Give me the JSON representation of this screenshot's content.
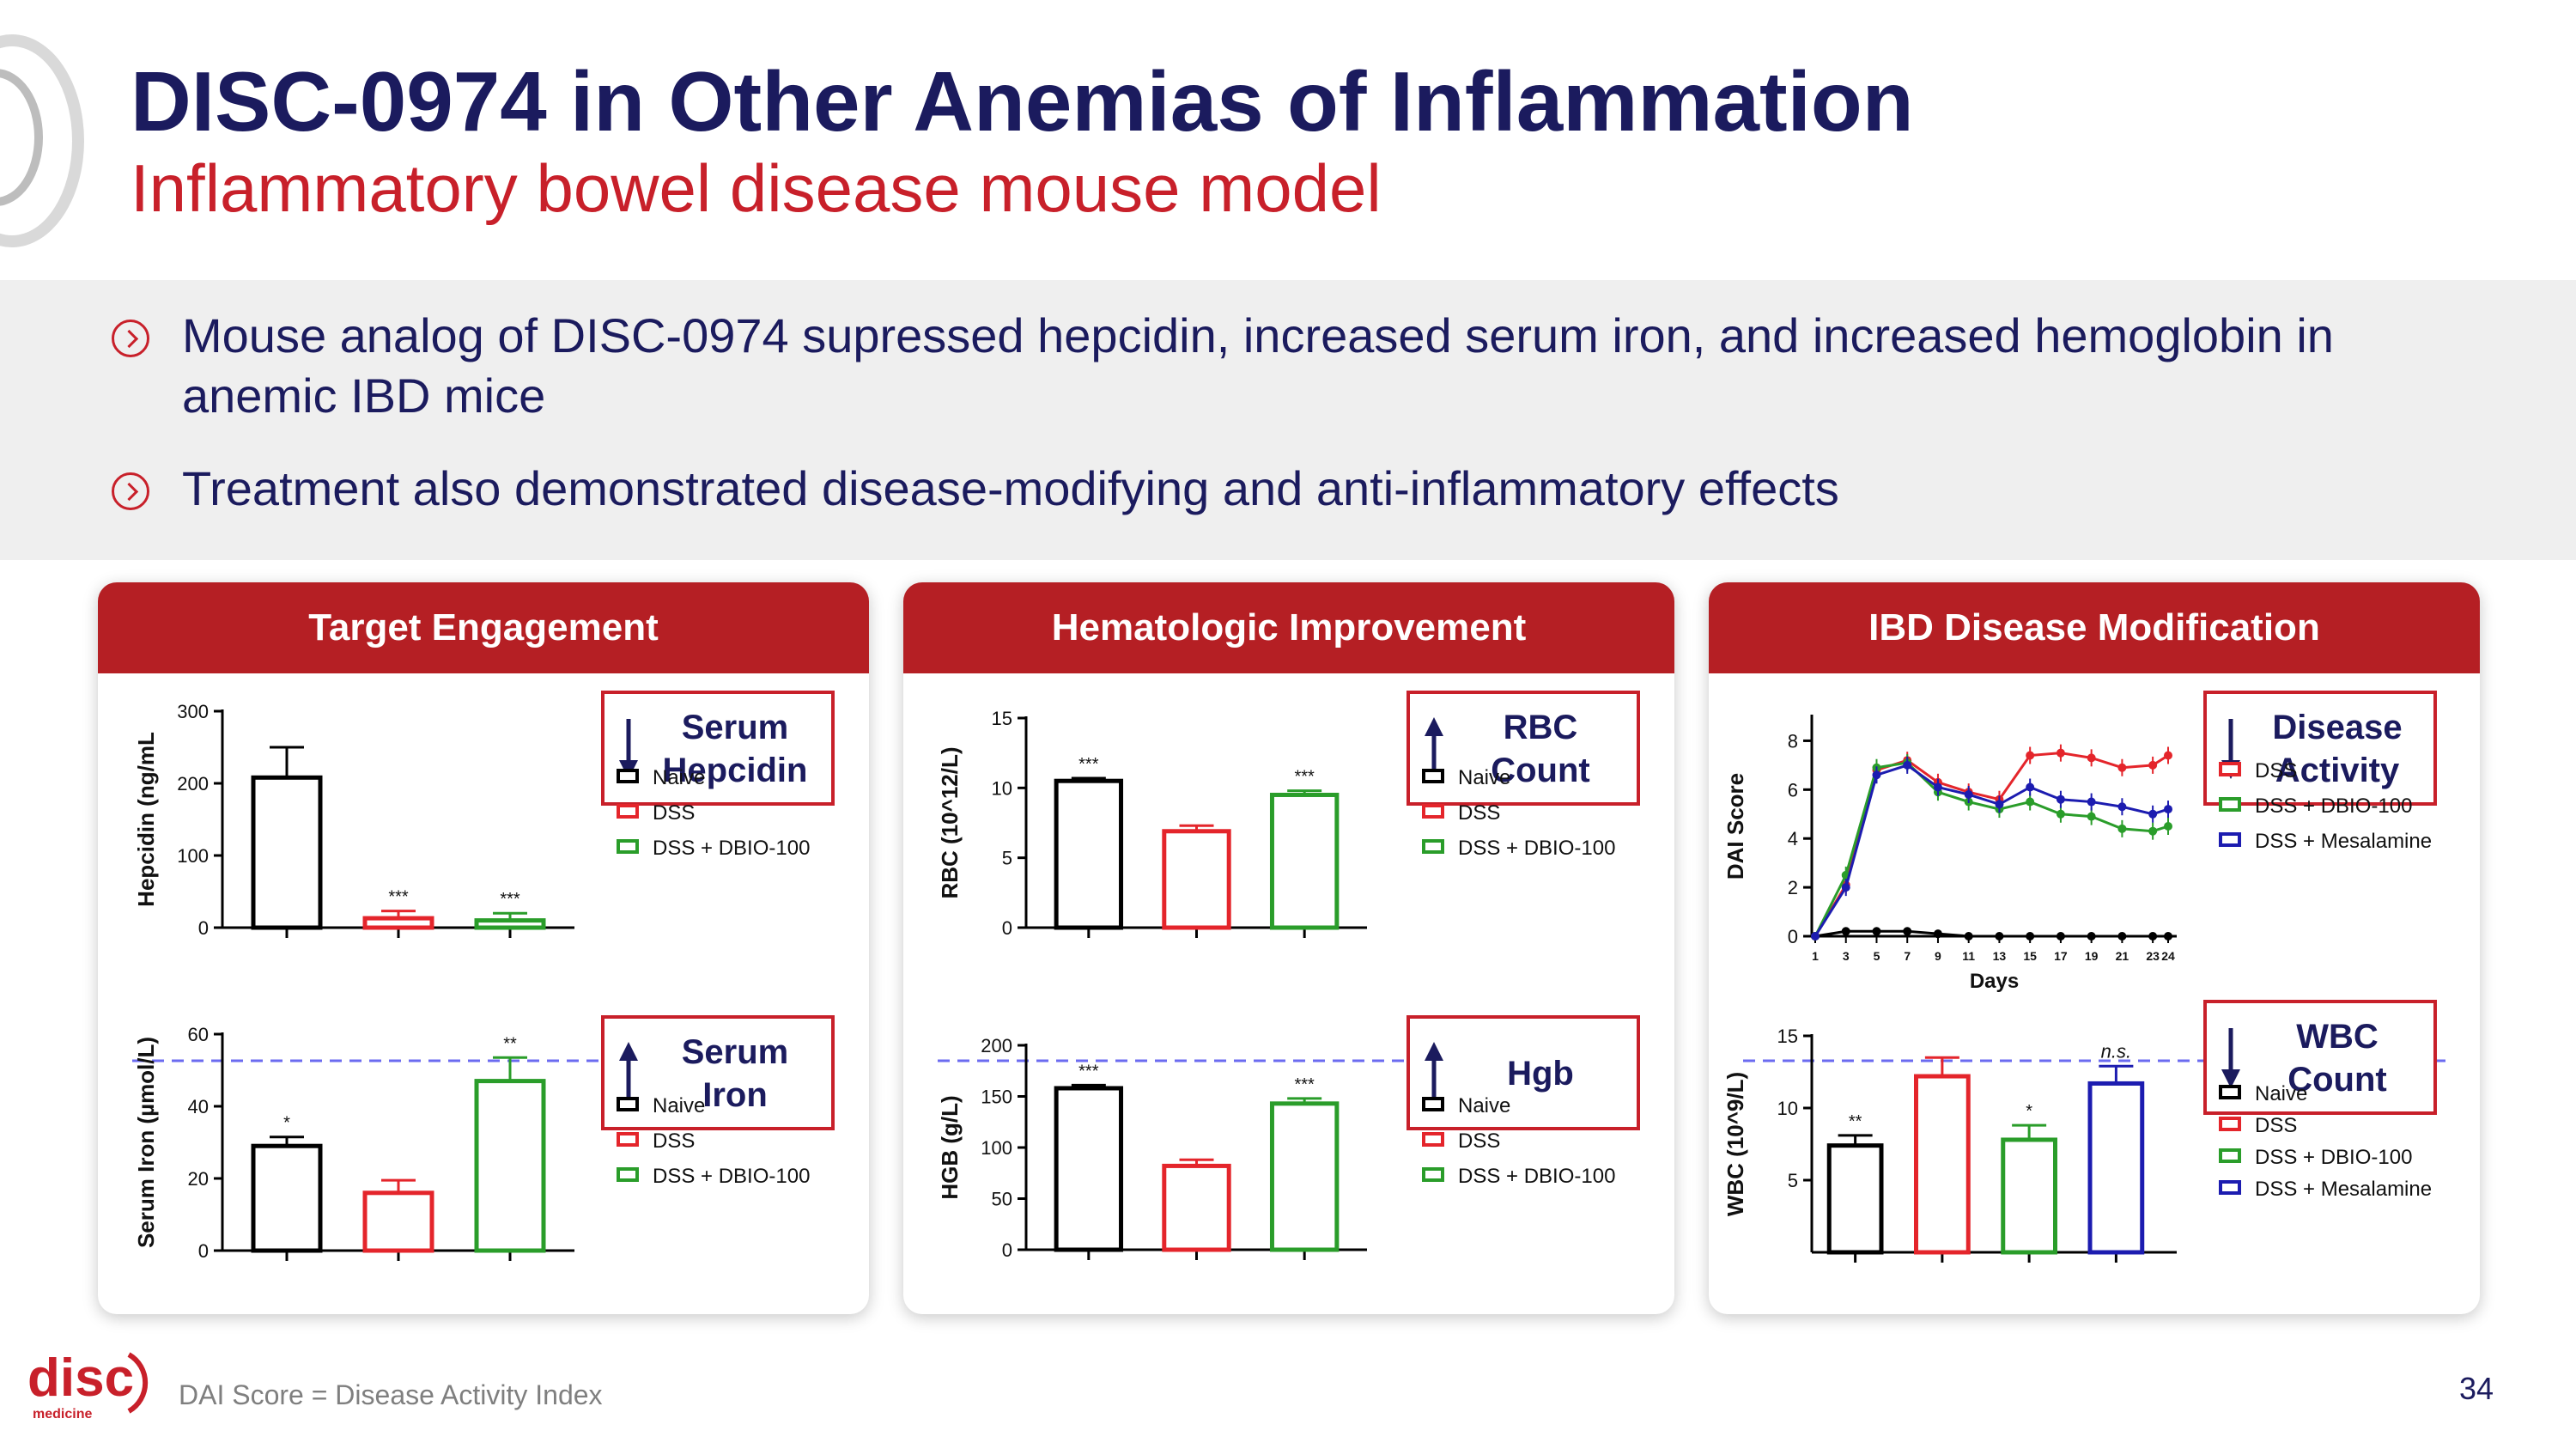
{
  "header": {
    "title": "DISC-0974 in Other Anemias of Inflammation",
    "subtitle": "Inflammatory bowel disease mouse model"
  },
  "bullets": [
    "Mouse analog of DISC-0974 supressed hepcidin, increased serum iron, and increased hemoglobin in anemic IBD mice",
    "Treatment also demonstrated disease-modifying and anti-inflammatory effects"
  ],
  "footnote": "DAI Score = Disease Activity Index",
  "page_number": "34",
  "logo": {
    "text": "disc",
    "subtext": "medicine"
  },
  "colors": {
    "naive": "#000000",
    "dss": "#e4252b",
    "dbio": "#2a9d2a",
    "mesalamine": "#1c1cb0",
    "header_red": "#b51f24"
  },
  "panels": [
    {
      "title": "Target Engagement"
    },
    {
      "title": "Hematologic Improvement"
    },
    {
      "title": "IBD Disease Modification"
    }
  ],
  "chart_data": [
    {
      "type": "bar",
      "panel": 0,
      "ylabel": "Hepcidin (ng/mL",
      "yticks": [
        0,
        100,
        200,
        300
      ],
      "ylim": [
        0,
        300
      ],
      "box": {
        "arrow": "down",
        "lines": [
          "Serum",
          "Hepcidin"
        ]
      },
      "legend": [
        "Naive",
        "DSS",
        "DSS + DBIO-100"
      ],
      "series": [
        {
          "name": "Naive",
          "value": 208,
          "err": 42,
          "sig": "",
          "color": "naive"
        },
        {
          "name": "DSS",
          "value": 13,
          "err": 10,
          "sig": "***",
          "color": "dss"
        },
        {
          "name": "DSS + DBIO-100",
          "value": 10,
          "err": 10,
          "sig": "***",
          "color": "dbio"
        }
      ]
    },
    {
      "type": "bar",
      "panel": 0,
      "ylabel": "Serum Iron (µmol/L)",
      "yticks": [
        0,
        20,
        40,
        60
      ],
      "ylim": [
        0,
        60
      ],
      "box": {
        "arrow": "up",
        "lines": [
          "Serum",
          "Iron"
        ]
      },
      "legend": [
        "Naive",
        "DSS",
        "DSS + DBIO-100"
      ],
      "series": [
        {
          "name": "Naive",
          "value": 29,
          "err": 2.5,
          "sig": "*",
          "color": "naive"
        },
        {
          "name": "DSS",
          "value": 16,
          "err": 3.5,
          "sig": "",
          "color": "dss"
        },
        {
          "name": "DSS + DBIO-100",
          "value": 47,
          "err": 6.5,
          "sig": "**",
          "color": "dbio"
        }
      ]
    },
    {
      "type": "bar",
      "panel": 1,
      "ylabel": "RBC (10^12/L)",
      "yticks": [
        0,
        5,
        10,
        15
      ],
      "ylim": [
        0,
        15
      ],
      "box": {
        "arrow": "up",
        "lines": [
          "RBC",
          "Count"
        ]
      },
      "legend": [
        "Naive",
        "DSS",
        "DSS + DBIO-100"
      ],
      "series": [
        {
          "name": "Naive",
          "value": 10.5,
          "err": 0.2,
          "sig": "***",
          "color": "naive"
        },
        {
          "name": "DSS",
          "value": 6.9,
          "err": 0.4,
          "sig": "",
          "color": "dss"
        },
        {
          "name": "DSS + DBIO-100",
          "value": 9.5,
          "err": 0.3,
          "sig": "***",
          "color": "dbio"
        }
      ]
    },
    {
      "type": "bar",
      "panel": 1,
      "ylabel": "HGB (g/L)",
      "yticks": [
        0,
        50,
        100,
        150,
        200
      ],
      "ylim": [
        0,
        200
      ],
      "box": {
        "arrow": "up",
        "lines": [
          "Hgb"
        ]
      },
      "legend": [
        "Naive",
        "DSS",
        "DSS + DBIO-100"
      ],
      "series": [
        {
          "name": "Naive",
          "value": 158,
          "err": 3,
          "sig": "***",
          "color": "naive"
        },
        {
          "name": "DSS",
          "value": 82,
          "err": 6,
          "sig": "",
          "color": "dss"
        },
        {
          "name": "DSS + DBIO-100",
          "value": 143,
          "err": 5,
          "sig": "***",
          "color": "dbio"
        }
      ]
    },
    {
      "type": "line",
      "panel": 2,
      "ylabel": "DAI Score",
      "xlabel": "Days",
      "yticks": [
        0,
        2,
        4,
        6,
        8
      ],
      "ylim": [
        0,
        9
      ],
      "x": [
        1,
        3,
        5,
        7,
        9,
        11,
        13,
        15,
        17,
        19,
        21,
        23,
        24
      ],
      "xticks": [
        "1",
        "3",
        "5",
        "7",
        "9",
        "11",
        "13",
        "15",
        "17",
        "19",
        "21",
        "23",
        "24"
      ],
      "box": {
        "arrow": "down",
        "lines": [
          "Disease",
          "Activity"
        ]
      },
      "legend": [
        "DSS",
        "DSS + DBIO-100",
        "DSS + Mesalamine"
      ],
      "series": [
        {
          "name": "Naive",
          "color": "naive",
          "values": [
            0,
            0.2,
            0.2,
            0.2,
            0.1,
            0,
            0,
            0,
            0,
            0,
            0,
            0,
            0
          ]
        },
        {
          "name": "DSS",
          "color": "dss",
          "values": [
            0,
            2.1,
            6.8,
            7.2,
            6.3,
            5.9,
            5.6,
            7.4,
            7.5,
            7.3,
            6.9,
            7.0,
            7.4
          ]
        },
        {
          "name": "DSS + DBIO-100",
          "color": "dbio",
          "values": [
            0,
            2.5,
            6.9,
            7.1,
            5.9,
            5.5,
            5.2,
            5.5,
            5.0,
            4.9,
            4.4,
            4.3,
            4.5
          ]
        },
        {
          "name": "DSS + Mesalamine",
          "color": "mesalamine",
          "values": [
            0,
            2.0,
            6.6,
            7.0,
            6.1,
            5.8,
            5.4,
            6.1,
            5.6,
            5.5,
            5.3,
            5.0,
            5.2
          ]
        }
      ]
    },
    {
      "type": "bar",
      "panel": 2,
      "ylabel": "WBC (10^9/L)",
      "yticks": [
        5,
        10,
        15
      ],
      "ylim": [
        0,
        15
      ],
      "box": {
        "arrow": "down",
        "lines": [
          "WBC",
          "Count"
        ]
      },
      "legend": [
        "Naive",
        "DSS",
        "DSS + DBIO-100",
        "DSS + Mesalamine"
      ],
      "series": [
        {
          "name": "Naive",
          "value": 7.4,
          "err": 0.7,
          "sig": "**",
          "color": "naive"
        },
        {
          "name": "DSS",
          "value": 12.2,
          "err": 1.3,
          "sig": "",
          "color": "dss"
        },
        {
          "name": "DSS + DBIO-100",
          "value": 7.8,
          "err": 1.0,
          "sig": "*",
          "color": "dbio"
        },
        {
          "name": "DSS + Mesalamine",
          "value": 11.7,
          "err": 1.2,
          "sig": "n.s.",
          "color": "mesalamine"
        }
      ]
    }
  ]
}
